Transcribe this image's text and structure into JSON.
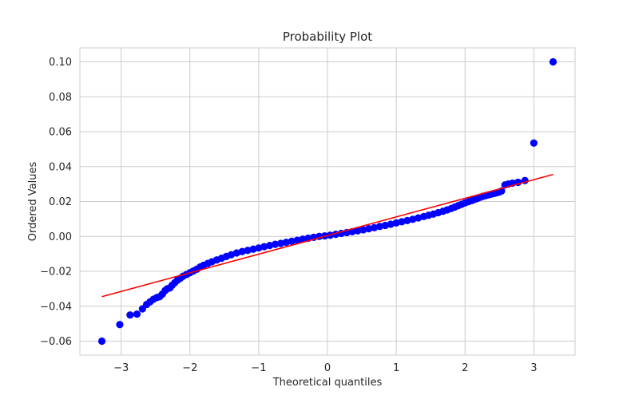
{
  "chart_data": {
    "type": "scatter",
    "title": "Probability Plot",
    "xlabel": "Theoretical quantiles",
    "ylabel": "Ordered Values",
    "xlim": [
      -3.6,
      3.6
    ],
    "ylim": [
      -0.068,
      0.108
    ],
    "xticks": [
      -3,
      -2,
      -1,
      0,
      1,
      2,
      3
    ],
    "xtick_labels": [
      "−3",
      "−2",
      "−1",
      "0",
      "1",
      "2",
      "3"
    ],
    "yticks": [
      -0.06,
      -0.04,
      -0.02,
      0.0,
      0.02,
      0.04,
      0.06,
      0.08,
      0.1
    ],
    "ytick_labels": [
      "−0.06",
      "−0.04",
      "−0.02",
      "0.00",
      "0.02",
      "0.04",
      "0.06",
      "0.08",
      "0.10"
    ],
    "grid": true,
    "point_color": "#0000ff",
    "line_color": "#ff0000",
    "fit_line": {
      "x": [
        -3.28,
        3.28
      ],
      "y": [
        -0.0345,
        0.0355
      ]
    },
    "series": [
      {
        "x": [
          -3.28,
          -3.02,
          -2.87,
          -2.77,
          -2.69,
          -2.63,
          -2.58,
          -2.53,
          -2.48,
          -2.44,
          -2.4,
          -2.36,
          -2.33,
          -2.29,
          -2.26,
          -2.22,
          -2.18,
          -2.14,
          -2.1,
          -2.05,
          -2.0,
          -1.95,
          -1.9,
          -1.85,
          -1.8,
          -1.74,
          -1.68,
          -1.61,
          -1.54,
          -1.47,
          -1.4,
          -1.32,
          -1.24,
          -1.16,
          -1.08,
          -1.0,
          -0.92,
          -0.84,
          -0.76,
          -0.68,
          -0.6,
          -0.52,
          -0.44,
          -0.36,
          -0.28,
          -0.2,
          -0.12,
          -0.04,
          0.04,
          0.12,
          0.2,
          0.28,
          0.36,
          0.44,
          0.52,
          0.6,
          0.68,
          0.76,
          0.84,
          0.92,
          1.0,
          1.08,
          1.16,
          1.24,
          1.32,
          1.4,
          1.47,
          1.54,
          1.61,
          1.68,
          1.74,
          1.8,
          1.85,
          1.9,
          1.95,
          2.0,
          2.05,
          2.1,
          2.14,
          2.18,
          2.22,
          2.26,
          2.3,
          2.34,
          2.38,
          2.42,
          2.46,
          2.5,
          2.53,
          2.58,
          2.63,
          2.69,
          2.77,
          2.87,
          3.0,
          3.28
        ],
        "y": [
          -0.06,
          -0.0505,
          -0.045,
          -0.0445,
          -0.0415,
          -0.039,
          -0.0375,
          -0.036,
          -0.035,
          -0.0345,
          -0.033,
          -0.031,
          -0.03,
          -0.0295,
          -0.028,
          -0.0265,
          -0.025,
          -0.024,
          -0.0228,
          -0.0218,
          -0.0208,
          -0.0198,
          -0.0188,
          -0.0175,
          -0.0165,
          -0.0155,
          -0.0145,
          -0.0135,
          -0.0125,
          -0.0115,
          -0.0105,
          -0.0095,
          -0.0087,
          -0.008,
          -0.0073,
          -0.0066,
          -0.0059,
          -0.0052,
          -0.0045,
          -0.004,
          -0.0034,
          -0.0028,
          -0.0022,
          -0.0016,
          -0.001,
          -0.0005,
          0.0,
          0.0003,
          0.0007,
          0.0012,
          0.0017,
          0.0022,
          0.0027,
          0.0032,
          0.0038,
          0.0044,
          0.005,
          0.0057,
          0.0063,
          0.007,
          0.0077,
          0.0084,
          0.0091,
          0.0098,
          0.0106,
          0.0114,
          0.0121,
          0.0128,
          0.0136,
          0.0144,
          0.0152,
          0.016,
          0.0168,
          0.0176,
          0.0184,
          0.0192,
          0.0199,
          0.0206,
          0.0212,
          0.0218,
          0.0224,
          0.023,
          0.0234,
          0.0238,
          0.0242,
          0.0246,
          0.025,
          0.0255,
          0.026,
          0.0295,
          0.03,
          0.0305,
          0.031,
          0.032,
          0.0535,
          0.1
        ]
      }
    ]
  }
}
